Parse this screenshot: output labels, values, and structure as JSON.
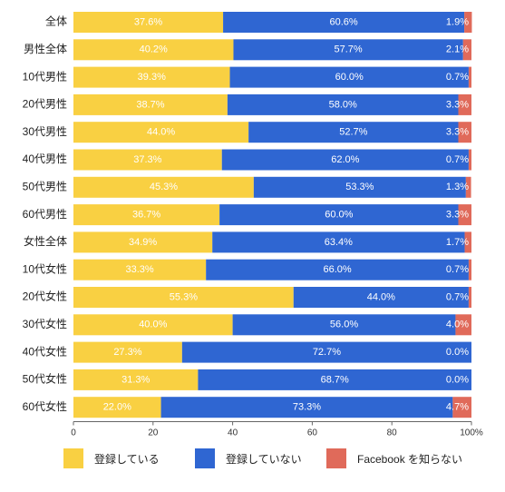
{
  "chart_data": {
    "type": "bar",
    "orientation": "horizontal",
    "stacked": true,
    "categories": [
      "全体",
      "男性全体",
      "10代男性",
      "20代男性",
      "30代男性",
      "40代男性",
      "50代男性",
      "60代男性",
      "女性全体",
      "10代女性",
      "20代女性",
      "30代女性",
      "40代女性",
      "50代女性",
      "60代女性"
    ],
    "series": [
      {
        "name": "登録している",
        "color": "#F9D042",
        "values": [
          37.6,
          40.2,
          39.3,
          38.7,
          44.0,
          37.3,
          45.3,
          36.7,
          34.9,
          33.3,
          55.3,
          40.0,
          27.3,
          31.3,
          22.0
        ],
        "labels": [
          "37.6%",
          "40.2%",
          "39.3%",
          "38.7%",
          "44.0%",
          "37.3%",
          "45.3%",
          "36.7%",
          "34.9%",
          "33.3%",
          "55.3%",
          "40.0%",
          "27.3%",
          "31.3%",
          "22.0%"
        ]
      },
      {
        "name": "登録していない",
        "color": "#2F66D2",
        "values": [
          60.6,
          57.7,
          60.0,
          58.0,
          52.7,
          62.0,
          53.3,
          60.0,
          63.4,
          66.0,
          44.0,
          56.0,
          72.7,
          68.7,
          73.3
        ],
        "labels": [
          "60.6%",
          "57.7%",
          "60.0%",
          "58.0%",
          "52.7%",
          "62.0%",
          "53.3%",
          "60.0%",
          "63.4%",
          "66.0%",
          "44.0%",
          "56.0%",
          "72.7%",
          "68.7%",
          "73.3%"
        ]
      },
      {
        "name": "Facebook を知らない",
        "color": "#E06A5A",
        "values": [
          1.9,
          2.1,
          0.7,
          3.3,
          3.3,
          0.7,
          1.3,
          3.3,
          1.7,
          0.7,
          0.7,
          4.0,
          0.0,
          0.0,
          4.7
        ],
        "labels": [
          "1.9%",
          "2.1%",
          "0.7%",
          "3.3%",
          "3.3%",
          "0.7%",
          "1.3%",
          "3.3%",
          "1.7%",
          "0.7%",
          "0.7%",
          "4.0%",
          "0.0%",
          "0.0%",
          "4.7%"
        ]
      }
    ],
    "xlim": [
      0,
      100
    ],
    "x_ticks": [
      0,
      20,
      40,
      60,
      80,
      100
    ],
    "x_tick_labels": [
      "0",
      "20",
      "40",
      "60",
      "80",
      "100%"
    ],
    "grid": false,
    "legend_position": "bottom"
  }
}
